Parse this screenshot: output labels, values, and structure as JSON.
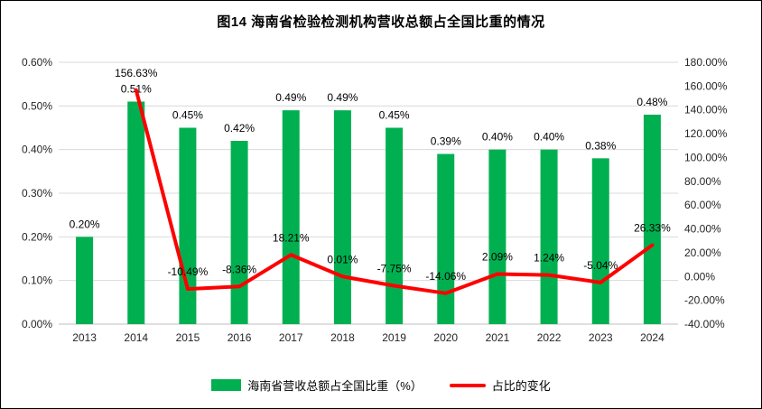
{
  "chart_data": {
    "type": "combo",
    "title": "图14 海南省检验检测机构营收总额占全国比重的情况",
    "categories": [
      "2013",
      "2014",
      "2015",
      "2016",
      "2017",
      "2018",
      "2019",
      "2020",
      "2021",
      "2022",
      "2023",
      "2024"
    ],
    "series": [
      {
        "name": "海南省营收总额占全国比重（%）",
        "type": "bar",
        "axis": "left",
        "color": "#00B050",
        "values": [
          0.2,
          0.51,
          0.45,
          0.42,
          0.49,
          0.49,
          0.45,
          0.39,
          0.4,
          0.4,
          0.38,
          0.48
        ]
      },
      {
        "name": "占比的变化",
        "type": "line",
        "axis": "right",
        "color": "#FF0000",
        "values": [
          null,
          156.63,
          -10.49,
          -8.36,
          18.21,
          0.01,
          -7.75,
          -14.06,
          2.09,
          1.24,
          -5.04,
          26.33
        ]
      }
    ],
    "left_axis": {
      "min": 0,
      "max": 0.6,
      "unit": "%",
      "ticks": [
        "0.00%",
        "0.10%",
        "0.20%",
        "0.30%",
        "0.40%",
        "0.50%",
        "0.60%"
      ]
    },
    "right_axis": {
      "min": -40,
      "max": 180,
      "unit": "%",
      "ticks": [
        "-40.00%",
        "-20.00%",
        "0.00%",
        "20.00%",
        "40.00%",
        "60.00%",
        "80.00%",
        "100.00%",
        "120.00%",
        "140.00%",
        "160.00%",
        "180.00%"
      ]
    },
    "grid": true,
    "legend_position": "bottom",
    "colors": {
      "grid": "#D9D9D9",
      "axis_line": "#BFBFBF",
      "label": "#000000"
    }
  }
}
